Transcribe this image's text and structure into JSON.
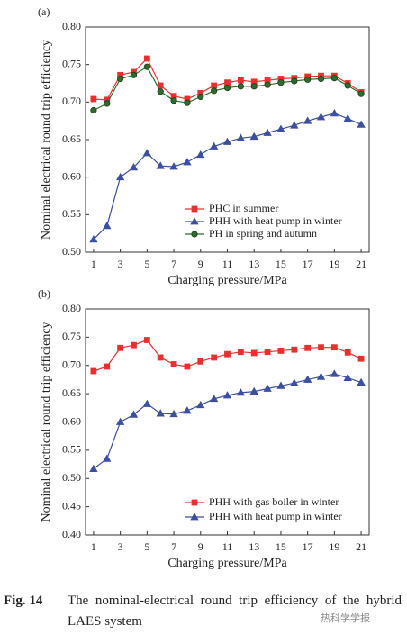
{
  "chart_data": [
    {
      "type": "line",
      "panel_label": "(a)",
      "xlabel": "Charging pressure/MPa",
      "ylabel": "Nominal electrical round trip efficiency",
      "x": [
        1,
        2,
        3,
        4,
        5,
        6,
        7,
        8,
        9,
        10,
        11,
        12,
        13,
        14,
        15,
        16,
        17,
        18,
        19,
        20,
        21
      ],
      "xlim": [
        0.4,
        21.6
      ],
      "xticks": [
        1,
        3,
        5,
        7,
        9,
        11,
        13,
        15,
        17,
        19,
        21
      ],
      "ylim": [
        0.5,
        0.8
      ],
      "yticks": [
        {
          "value": 0.5,
          "label": "0.50"
        },
        0.55,
        {
          "value": 0.6,
          "label": "0.60"
        },
        0.65,
        {
          "value": 0.7,
          "label": "0.70"
        },
        0.75,
        {
          "value": 0.8,
          "label": "0.80"
        }
      ],
      "legend": "lower right",
      "series": [
        {
          "name": "PHC in summer",
          "color": "#e8312f",
          "marker": "square",
          "values": [
            0.704,
            0.703,
            0.736,
            0.74,
            0.758,
            0.722,
            0.708,
            0.704,
            0.712,
            0.722,
            0.726,
            0.729,
            0.727,
            0.729,
            0.731,
            0.732,
            0.734,
            0.735,
            0.735,
            0.725,
            0.713
          ]
        },
        {
          "name": "PHH with heat pump in winter",
          "color": "#3c4fa0",
          "marker": "triangle",
          "values": [
            0.517,
            0.535,
            0.6,
            0.613,
            0.632,
            0.615,
            0.614,
            0.62,
            0.63,
            0.641,
            0.647,
            0.652,
            0.654,
            0.659,
            0.664,
            0.669,
            0.675,
            0.68,
            0.685,
            0.678,
            0.67
          ]
        },
        {
          "name": "PH in spring and autumn",
          "color": "#2e6b2e",
          "marker": "circle",
          "values": [
            0.689,
            0.698,
            0.731,
            0.736,
            0.747,
            0.714,
            0.702,
            0.699,
            0.707,
            0.715,
            0.719,
            0.721,
            0.721,
            0.723,
            0.726,
            0.728,
            0.73,
            0.731,
            0.732,
            0.722,
            0.711
          ]
        }
      ]
    },
    {
      "type": "line",
      "panel_label": "(b)",
      "xlabel": "Charging pressure/MPa",
      "ylabel": "Nominal electrical round trip efficiency",
      "x": [
        1,
        2,
        3,
        4,
        5,
        6,
        7,
        8,
        9,
        10,
        11,
        12,
        13,
        14,
        15,
        16,
        17,
        18,
        19,
        20,
        21
      ],
      "xlim": [
        0.4,
        21.6
      ],
      "xticks": [
        1,
        3,
        5,
        7,
        9,
        11,
        13,
        15,
        17,
        19,
        21
      ],
      "ylim": [
        0.4,
        0.8
      ],
      "yticks": [
        {
          "value": 0.4,
          "label": "0.40"
        },
        0.45,
        {
          "value": 0.5,
          "label": "0.50"
        },
        0.55,
        {
          "value": 0.6,
          "label": "0.60"
        },
        0.65,
        {
          "value": 0.7,
          "label": "0.70"
        },
        0.75,
        {
          "value": 0.8,
          "label": "0.80"
        }
      ],
      "legend": "lower right",
      "series": [
        {
          "name": "PHH with gas boiler in winter",
          "color": "#e8312f",
          "marker": "square",
          "values": [
            0.69,
            0.698,
            0.731,
            0.736,
            0.745,
            0.714,
            0.702,
            0.698,
            0.707,
            0.714,
            0.72,
            0.724,
            0.722,
            0.724,
            0.726,
            0.728,
            0.731,
            0.732,
            0.732,
            0.723,
            0.712
          ]
        },
        {
          "name": "PHH with heat pump in winter",
          "color": "#3c4fa0",
          "marker": "triangle",
          "values": [
            0.517,
            0.535,
            0.6,
            0.613,
            0.632,
            0.615,
            0.614,
            0.62,
            0.63,
            0.641,
            0.647,
            0.652,
            0.654,
            0.659,
            0.664,
            0.669,
            0.675,
            0.68,
            0.685,
            0.678,
            0.67
          ]
        }
      ]
    }
  ],
  "caption": {
    "label": "Fig. 14",
    "text": "The nominal-electrical round trip efficiency of the hybrid LAES system"
  },
  "watermark": "热科学学报"
}
